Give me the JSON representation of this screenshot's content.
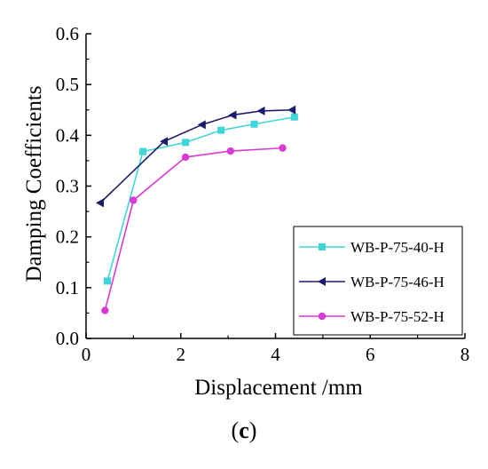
{
  "chart_data": {
    "type": "line",
    "title": "",
    "xlabel": "Displacement /mm",
    "ylabel": "Damping Coefficients",
    "xlim": [
      0,
      8
    ],
    "ylim": [
      0,
      0.6
    ],
    "xticks": [
      0,
      2,
      4,
      6,
      8
    ],
    "yticks": [
      0.0,
      0.1,
      0.2,
      0.3,
      0.4,
      0.5,
      0.6
    ],
    "xtick_labels": [
      "0",
      "2",
      "4",
      "6",
      "8"
    ],
    "ytick_labels": [
      "0.0",
      "0.1",
      "0.2",
      "0.3",
      "0.4",
      "0.5",
      "0.6"
    ],
    "grid": false,
    "legend_position": "bottom-right",
    "series": [
      {
        "name": "WB-P-75-40-H",
        "color": "#3ed6d8",
        "marker": "square",
        "x": [
          0.45,
          1.2,
          2.1,
          2.85,
          3.55,
          4.4
        ],
        "y": [
          0.113,
          0.368,
          0.386,
          0.41,
          0.422,
          0.436
        ]
      },
      {
        "name": "WB-P-75-46-H",
        "color": "#1b1a6b",
        "marker": "triangle-left",
        "x": [
          0.3,
          1.65,
          2.45,
          3.1,
          3.7,
          4.35
        ],
        "y": [
          0.267,
          0.388,
          0.421,
          0.44,
          0.448,
          0.45
        ]
      },
      {
        "name": "WB-P-75-52-H",
        "color": "#d93ad3",
        "marker": "circle",
        "x": [
          0.4,
          1.0,
          2.1,
          3.05,
          4.15
        ],
        "y": [
          0.055,
          0.272,
          0.357,
          0.369,
          0.375
        ]
      }
    ]
  },
  "caption": {
    "open": "(",
    "letter": "c",
    "close": ")"
  }
}
